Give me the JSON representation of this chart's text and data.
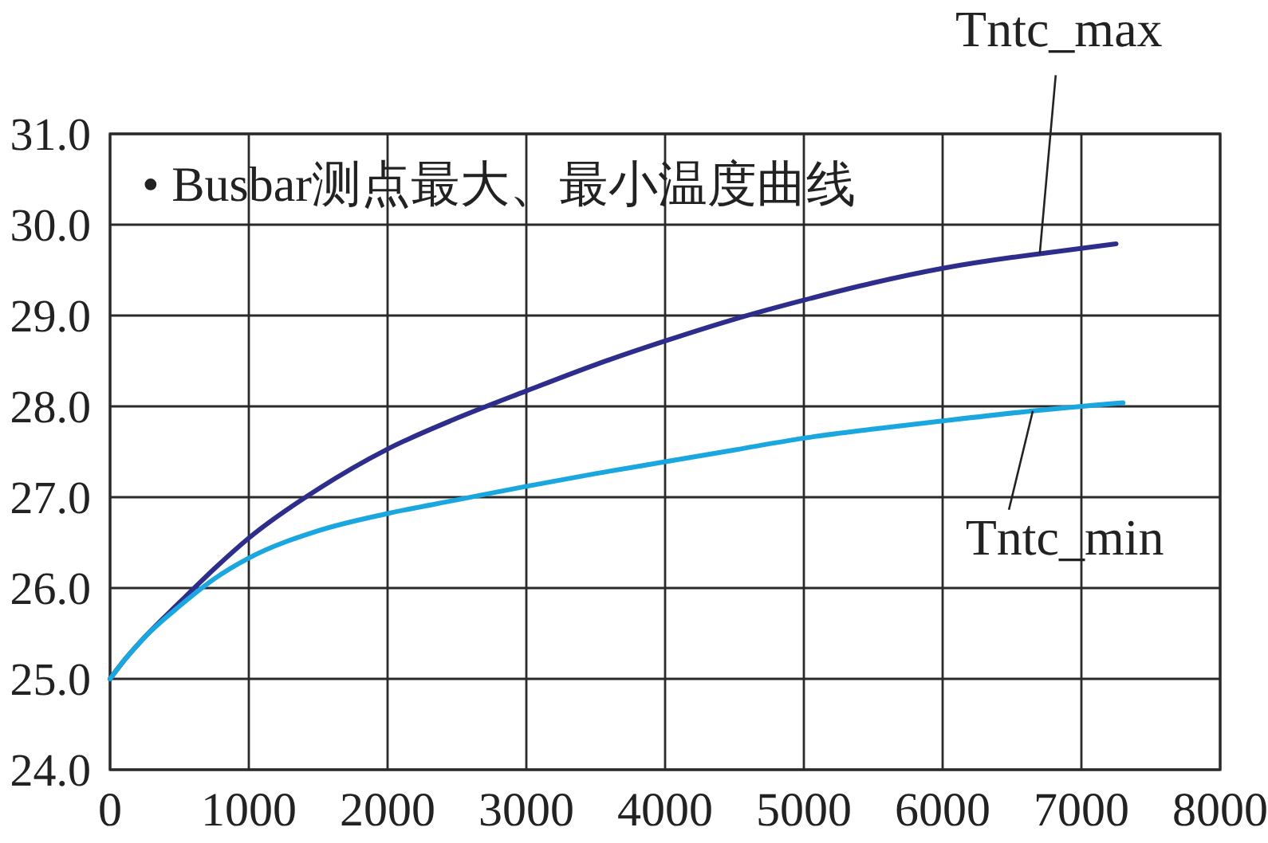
{
  "chart_data": {
    "type": "line",
    "title": "• Busbar测点最大、最小温度曲线",
    "xlim": [
      0,
      8000
    ],
    "xticks": [
      0,
      1000,
      2000,
      3000,
      4000,
      5000,
      6000,
      7000,
      8000
    ],
    "ylim": [
      24,
      31
    ],
    "yticks": [
      {
        "value": 24,
        "label": "24.0"
      },
      {
        "value": 25,
        "label": "25.0"
      },
      {
        "value": 26,
        "label": "26.0"
      },
      {
        "value": 27,
        "label": "27.0"
      },
      {
        "value": 28,
        "label": "28.0"
      },
      {
        "value": 29,
        "label": "29.0"
      },
      {
        "value": 30,
        "label": "30.0"
      },
      {
        "value": 31,
        "label": "31.0"
      }
    ],
    "grid": true,
    "series": [
      {
        "name": "Tntc_max",
        "color": "#2e2d8c",
        "x": [
          0,
          100,
          250,
          500,
          750,
          1000,
          1500,
          2000,
          2500,
          3000,
          3500,
          4000,
          4500,
          5000,
          5500,
          6000,
          6500,
          6700,
          7250
        ],
        "values": [
          25.0,
          25.2,
          25.46,
          25.84,
          26.21,
          26.55,
          27.09,
          27.53,
          27.87,
          28.17,
          28.46,
          28.72,
          28.96,
          29.17,
          29.36,
          29.52,
          29.64,
          29.68,
          29.79
        ]
      },
      {
        "name": "Tntc_min",
        "color": "#1aa7e0",
        "x": [
          0,
          100,
          250,
          500,
          750,
          1000,
          1500,
          2000,
          2500,
          3000,
          3500,
          4000,
          4500,
          5000,
          5500,
          6000,
          6650,
          7300
        ],
        "values": [
          25.0,
          25.2,
          25.46,
          25.8,
          26.1,
          26.33,
          26.63,
          26.82,
          26.97,
          27.12,
          27.26,
          27.39,
          27.52,
          27.65,
          27.75,
          27.84,
          27.95,
          28.04
        ]
      }
    ]
  }
}
